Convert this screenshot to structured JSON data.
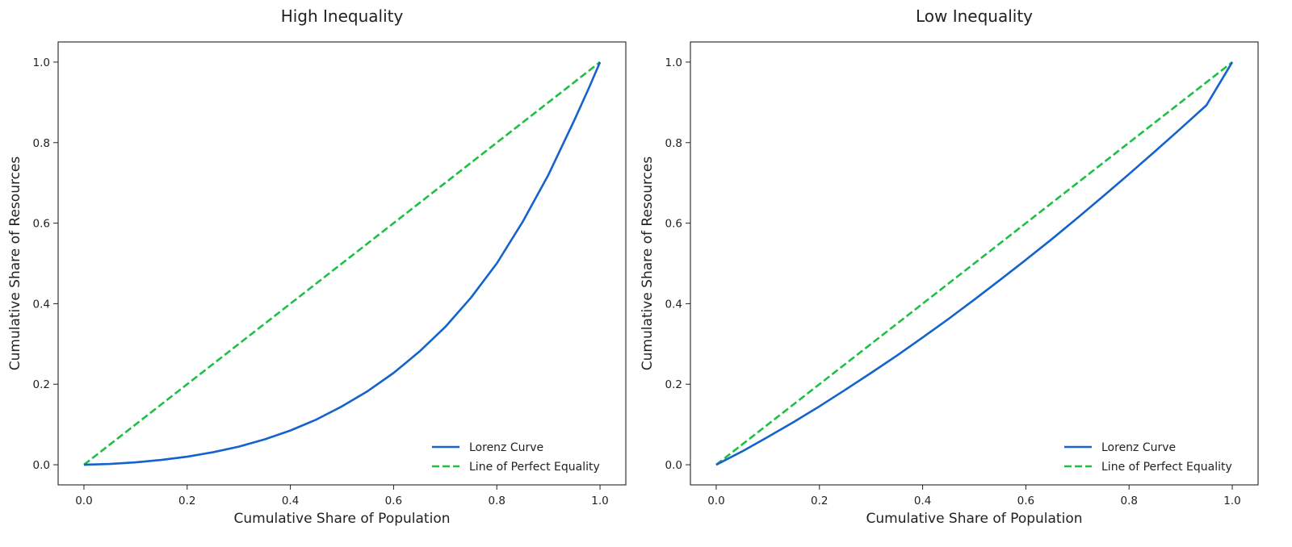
{
  "chart_data": [
    {
      "type": "line",
      "title": "High Inequality",
      "xlabel": "Cumulative Share of Population",
      "ylabel": "Cumulative Share of Resources",
      "xlim": [
        -0.05,
        1.05
      ],
      "ylim": [
        -0.05,
        1.05
      ],
      "xticks": [
        "0.0",
        "0.2",
        "0.4",
        "0.6",
        "0.8",
        "1.0"
      ],
      "yticks": [
        "0.0",
        "0.2",
        "0.4",
        "0.6",
        "0.8",
        "1.0"
      ],
      "grid": false,
      "legend_position": "lower-right",
      "series": [
        {
          "name": "Lorenz Curve",
          "color": "#1463cc",
          "style": "solid",
          "x": [
            0,
            0.05,
            0.1,
            0.15,
            0.2,
            0.25,
            0.3,
            0.35,
            0.4,
            0.45,
            0.5,
            0.55,
            0.6,
            0.65,
            0.7,
            0.75,
            0.8,
            0.85,
            0.9,
            0.95,
            0.98,
            1.0
          ],
          "y": [
            0,
            0.002,
            0.006,
            0.012,
            0.02,
            0.031,
            0.045,
            0.063,
            0.085,
            0.112,
            0.145,
            0.183,
            0.228,
            0.281,
            0.342,
            0.415,
            0.5,
            0.603,
            0.72,
            0.855,
            0.94,
            1.0
          ]
        },
        {
          "name": "Line of Perfect Equality",
          "color": "#1ec043",
          "style": "dashed",
          "x": [
            0,
            1
          ],
          "y": [
            0,
            1
          ]
        }
      ]
    },
    {
      "type": "line",
      "title": "Low Inequality",
      "xlabel": "Cumulative Share of Population",
      "ylabel": "Cumulative Share of Resources",
      "xlim": [
        -0.05,
        1.05
      ],
      "ylim": [
        -0.05,
        1.05
      ],
      "xticks": [
        "0.0",
        "0.2",
        "0.4",
        "0.6",
        "0.8",
        "1.0"
      ],
      "yticks": [
        "0.0",
        "0.2",
        "0.4",
        "0.6",
        "0.8",
        "1.0"
      ],
      "grid": false,
      "legend_position": "lower-right",
      "series": [
        {
          "name": "Lorenz Curve",
          "color": "#1463cc",
          "style": "solid",
          "x": [
            0,
            0.05,
            0.1,
            0.15,
            0.2,
            0.25,
            0.3,
            0.35,
            0.4,
            0.45,
            0.5,
            0.55,
            0.6,
            0.65,
            0.7,
            0.75,
            0.8,
            0.85,
            0.9,
            0.95,
            1.0
          ],
          "y": [
            0,
            0.033,
            0.069,
            0.106,
            0.145,
            0.186,
            0.228,
            0.271,
            0.316,
            0.362,
            0.41,
            0.459,
            0.509,
            0.56,
            0.613,
            0.667,
            0.722,
            0.778,
            0.835,
            0.893,
            1.0
          ]
        },
        {
          "name": "Line of Perfect Equality",
          "color": "#1ec043",
          "style": "dashed",
          "x": [
            0,
            1
          ],
          "y": [
            0,
            1
          ]
        }
      ]
    }
  ]
}
